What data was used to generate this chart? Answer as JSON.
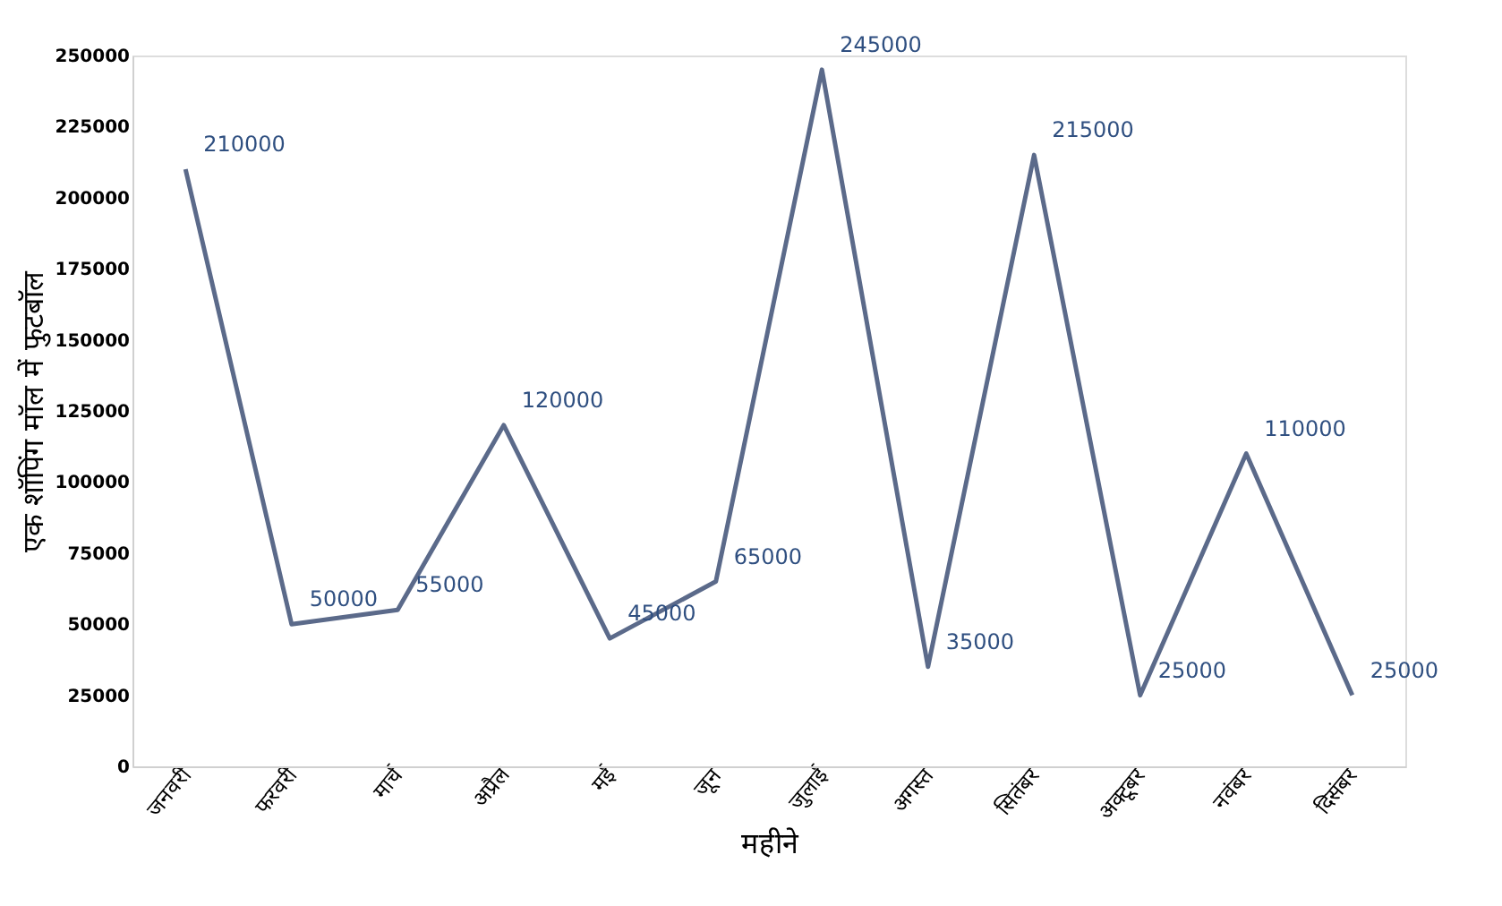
{
  "chart_data": {
    "type": "line",
    "xlabel": "महीने",
    "ylabel": "एक शॉपिंग मॉल में फुटबॉल",
    "categories": [
      "जनवरी",
      "फरवरी",
      "मार्च",
      "अप्रैल",
      "मई",
      "जून",
      "जुलाई",
      "अगस्त",
      "सितंबर",
      "अक्टूबर",
      "नवंबर",
      "दिसंबर"
    ],
    "series": [
      {
        "color": "#5b6a8a",
        "values": [
          210000,
          50000,
          55000,
          120000,
          45000,
          65000,
          245000,
          35000,
          215000,
          25000,
          110000,
          25000
        ]
      }
    ],
    "ylim": [
      0,
      250000
    ],
    "yticks": [
      0,
      25000,
      50000,
      75000,
      100000,
      125000,
      150000,
      175000,
      200000,
      225000,
      250000
    ],
    "data_labels": true,
    "grid": false,
    "marker": "none",
    "line_style": "solid"
  }
}
